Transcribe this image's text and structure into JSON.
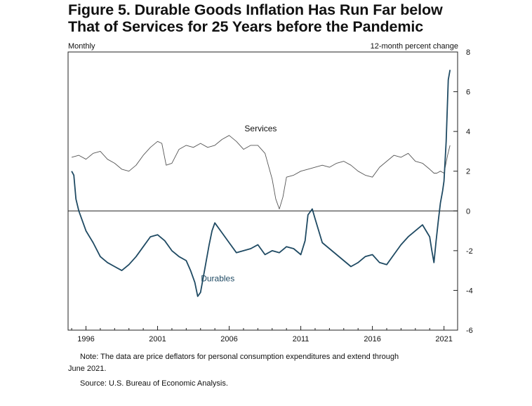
{
  "chart_data": {
    "type": "line",
    "title_line1": "Figure 5. Durable Goods Inflation Has Run Far below",
    "title_line2": "That of Services for 25 Years before the Pandemic",
    "frequency_label": "Monthly",
    "ylabel": "12-month percent change",
    "xlim": [
      1994.75,
      2021.95
    ],
    "ylim": [
      -6,
      8
    ],
    "x_ticks": [
      1996,
      2001,
      2006,
      2011,
      2016,
      2021
    ],
    "x_tick_labels": [
      "1996",
      "2001",
      "2006",
      "2011",
      "2016",
      "2021"
    ],
    "y_ticks": [
      8,
      6,
      4,
      2,
      0,
      -2,
      -4,
      -6
    ],
    "y_tick_labels": [
      "8",
      "6",
      "4",
      "2",
      "0",
      "-2",
      "-4",
      "-6"
    ],
    "zero_line": 0,
    "series": [
      {
        "name": "Services",
        "color": "#555555",
        "x": [
          1995.0,
          1995.5,
          1996.0,
          1996.5,
          1997.0,
          1997.5,
          1998.0,
          1998.5,
          1999.0,
          1999.5,
          2000.0,
          2000.5,
          2001.0,
          2001.3,
          2001.6,
          2002.0,
          2002.5,
          2003.0,
          2003.5,
          2004.0,
          2004.5,
          2005.0,
          2005.5,
          2006.0,
          2006.5,
          2007.0,
          2007.5,
          2008.0,
          2008.5,
          2009.0,
          2009.25,
          2009.5,
          2009.75,
          2010.0,
          2010.5,
          2011.0,
          2011.5,
          2012.0,
          2012.5,
          2013.0,
          2013.5,
          2014.0,
          2014.5,
          2015.0,
          2015.5,
          2016.0,
          2016.5,
          2017.0,
          2017.5,
          2018.0,
          2018.5,
          2019.0,
          2019.5,
          2020.0,
          2020.3,
          2020.5,
          2020.75,
          2021.0,
          2021.25,
          2021.42
        ],
        "values": [
          2.7,
          2.8,
          2.6,
          2.9,
          3.0,
          2.6,
          2.4,
          2.1,
          2.0,
          2.3,
          2.8,
          3.2,
          3.5,
          3.4,
          2.3,
          2.4,
          3.1,
          3.3,
          3.2,
          3.4,
          3.2,
          3.3,
          3.6,
          3.8,
          3.5,
          3.1,
          3.3,
          3.3,
          2.9,
          1.6,
          0.6,
          0.1,
          0.7,
          1.7,
          1.8,
          2.0,
          2.1,
          2.2,
          2.3,
          2.2,
          2.4,
          2.5,
          2.3,
          2.0,
          1.8,
          1.7,
          2.2,
          2.5,
          2.8,
          2.7,
          2.9,
          2.5,
          2.4,
          2.1,
          1.9,
          1.9,
          2.0,
          1.9,
          2.8,
          3.3
        ]
      },
      {
        "name": "Durables",
        "color": "#1f4a63",
        "x": [
          1995.0,
          1995.15,
          1995.3,
          1995.5,
          1995.75,
          1996.0,
          1996.5,
          1997.0,
          1997.5,
          1998.0,
          1998.5,
          1999.0,
          1999.5,
          2000.0,
          2000.5,
          2001.0,
          2001.5,
          2002.0,
          2002.5,
          2003.0,
          2003.3,
          2003.6,
          2003.8,
          2004.0,
          2004.3,
          2004.6,
          2004.8,
          2005.0,
          2005.5,
          2006.0,
          2006.5,
          2007.0,
          2007.5,
          2008.0,
          2008.5,
          2009.0,
          2009.5,
          2010.0,
          2010.5,
          2011.0,
          2011.3,
          2011.5,
          2011.8,
          2012.0,
          2012.5,
          2013.0,
          2013.5,
          2014.0,
          2014.5,
          2015.0,
          2015.5,
          2016.0,
          2016.5,
          2017.0,
          2017.5,
          2018.0,
          2018.5,
          2019.0,
          2019.5,
          2020.0,
          2020.15,
          2020.3,
          2020.45,
          2020.6,
          2020.75,
          2020.9,
          2021.0,
          2021.15,
          2021.3,
          2021.42
        ],
        "values": [
          2.0,
          1.8,
          0.6,
          0.0,
          -0.5,
          -1.0,
          -1.6,
          -2.3,
          -2.6,
          -2.8,
          -3.0,
          -2.7,
          -2.3,
          -1.8,
          -1.3,
          -1.2,
          -1.5,
          -2.0,
          -2.3,
          -2.5,
          -3.0,
          -3.6,
          -4.3,
          -4.1,
          -2.9,
          -1.7,
          -1.0,
          -0.6,
          -1.1,
          -1.6,
          -2.1,
          -2.0,
          -1.9,
          -1.7,
          -2.2,
          -2.0,
          -2.1,
          -1.8,
          -1.9,
          -2.2,
          -1.5,
          -0.2,
          0.1,
          -0.4,
          -1.6,
          -1.9,
          -2.2,
          -2.5,
          -2.8,
          -2.6,
          -2.3,
          -2.2,
          -2.6,
          -2.7,
          -2.2,
          -1.7,
          -1.3,
          -1.0,
          -0.7,
          -1.3,
          -2.0,
          -2.6,
          -1.5,
          -0.5,
          0.4,
          1.0,
          1.5,
          3.5,
          6.6,
          7.1
        ]
      }
    ],
    "annotations": [
      {
        "text": "Services",
        "x": 2008.2,
        "y": 4.0
      },
      {
        "text": "Durables",
        "x": 2005.2,
        "y": -3.55
      }
    ]
  },
  "notes": {
    "note_line1": "Note:  The data are price deflators for personal consumption expenditures and extend through",
    "note_line2": "June 2021.",
    "source": "Source:  U.S. Bureau of Economic Analysis."
  }
}
